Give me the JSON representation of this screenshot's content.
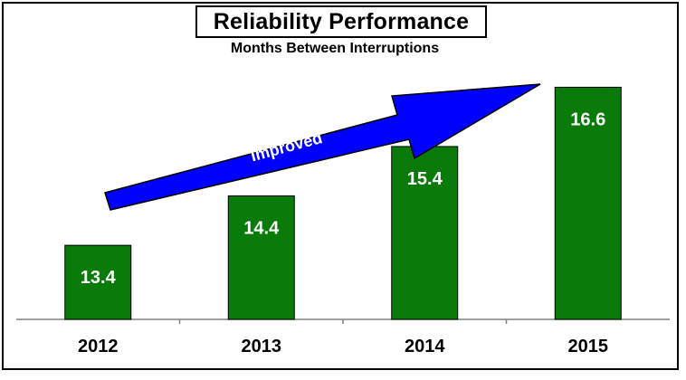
{
  "chart_data": {
    "type": "bar",
    "title": "Reliability Performance",
    "subtitle": "Months Between Interruptions",
    "categories": [
      "2012",
      "2013",
      "2014",
      "2015"
    ],
    "values": [
      13.4,
      14.4,
      15.4,
      16.6
    ],
    "value_labels": [
      "13.4",
      "14.4",
      "15.4",
      "16.6"
    ],
    "ylim": [
      11.9,
      18.0
    ],
    "bar_color": "#0a7a0a",
    "grid": false,
    "legend": "none",
    "annotations": [
      {
        "text": "Improved",
        "shape": "arrow",
        "color": "#0000ff"
      }
    ]
  }
}
